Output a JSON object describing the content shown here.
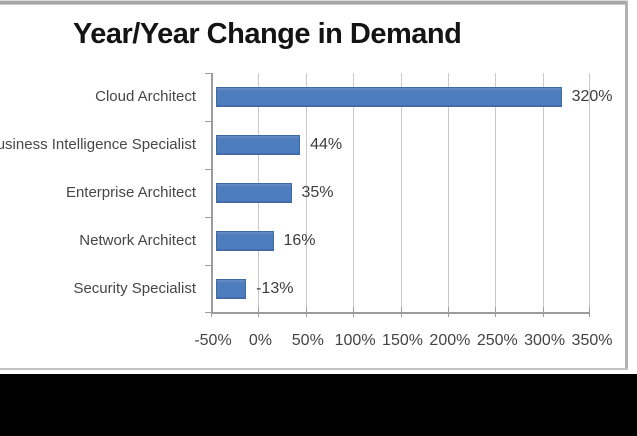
{
  "title": "Year/Year Change in Demand",
  "colors": {
    "bar_fill": "#4e7dbe",
    "bar_border": "#3e69a5",
    "gridline": "#c9c9c9",
    "axis_line": "#9c9c9c",
    "category_text": "#474747",
    "value_text": "#3d3d3d",
    "title_text": "#141414",
    "card_border": "#b2b2b2",
    "bottom_strip": "#000000"
  },
  "chart_data": {
    "type": "bar",
    "orientation": "horizontal",
    "title": "Year/Year Change in Demand",
    "categories": [
      "Cloud Architect",
      "Business Intelligence Specialist",
      "Enterprise Architect",
      "Network Architect",
      "Security Specialist"
    ],
    "values": [
      320,
      44,
      35,
      16,
      -13
    ],
    "data_labels": [
      "320%",
      "44%",
      "35%",
      "16%",
      "-13%"
    ],
    "xlabel": "",
    "ylabel": "",
    "xlim": [
      -50,
      350
    ],
    "x_tick_values": [
      -50,
      0,
      50,
      100,
      150,
      200,
      250,
      300,
      350
    ],
    "x_tick_labels": [
      "-50%",
      "0%",
      "50%",
      "100%",
      "150%",
      "200%",
      "250%",
      "300%",
      "350%"
    ],
    "grid": true,
    "legend": false,
    "bars_start_at_axis_min": true
  }
}
